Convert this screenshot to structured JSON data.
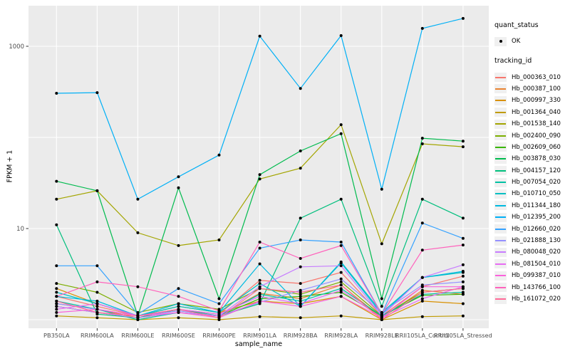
{
  "figure": {
    "background": "#FFFFFF",
    "panel_background": "#EBEBEB",
    "gridline_color": "#FFFFFF",
    "tick_text_color": "#4D4D4D",
    "point_color": "#000000"
  },
  "axes": {
    "x": {
      "title": "sample_name"
    },
    "y": {
      "title": "FPKM + 1",
      "tick_labels": [
        "1000",
        "10"
      ],
      "tick_values": [
        1000,
        10
      ],
      "gridline_values": [
        1,
        10,
        100,
        1000
      ],
      "scale": "log10"
    }
  },
  "legend": {
    "quant_status": {
      "title": "quant_status",
      "items": [
        {
          "label": "OK",
          "marker": "point",
          "color": "#000000"
        }
      ]
    },
    "tracking_id": {
      "title": "tracking_id"
    }
  },
  "chart_data": {
    "type": "line",
    "title": "",
    "xlabel": "sample_name",
    "ylabel": "FPKM + 1",
    "yscale": "log10",
    "ylim": [
      0.85,
      2800
    ],
    "grid": true,
    "legend_position": "right",
    "categories": [
      "PB350LA",
      "RRIM600LA",
      "RRIM600LE",
      "RRIM600SE",
      "RRIM600PE",
      "RRIM901LA",
      "RRIM928BA",
      "RRIM928LA",
      "RRIM928LE",
      "RRII105LA_Control",
      "RRII105LA_Stressed"
    ],
    "series": [
      {
        "name": "Hb_000363_010",
        "color": "#F8766D",
        "values": [
          1.8,
          1.4,
          1.1,
          1.3,
          1.15,
          2.7,
          2.5,
          3.3,
          1.1,
          2.3,
          3.0
        ]
      },
      {
        "name": "Hb_000387_100",
        "color": "#EA8331",
        "values": [
          1.5,
          1.3,
          1.05,
          1.2,
          1.1,
          1.95,
          1.7,
          2.4,
          1.05,
          2.1,
          1.9
        ]
      },
      {
        "name": "Hb_000997_330",
        "color": "#D89000",
        "values": [
          2.2,
          1.5,
          1.1,
          1.4,
          1.2,
          1.6,
          1.5,
          1.8,
          1.0,
          1.6,
          1.5
        ]
      },
      {
        "name": "Hb_001364_040",
        "color": "#C09B00",
        "values": [
          1.1,
          1.05,
          1.0,
          1.05,
          1.0,
          1.08,
          1.05,
          1.1,
          1.0,
          1.08,
          1.1
        ]
      },
      {
        "name": "Hb_001538_140",
        "color": "#A3A500",
        "values": [
          21,
          26,
          9,
          6.5,
          7.5,
          35,
          46,
          138,
          6.8,
          85,
          79
        ]
      },
      {
        "name": "Hb_002400_090",
        "color": "#7CAE00",
        "values": [
          2.5,
          2.0,
          1.2,
          1.5,
          1.3,
          2.2,
          1.9,
          2.6,
          1.1,
          2.0,
          2.2
        ]
      },
      {
        "name": "Hb_002609_060",
        "color": "#39B600",
        "values": [
          1.4,
          1.2,
          1.05,
          1.3,
          1.1,
          1.7,
          1.8,
          2.0,
          1.1,
          1.85,
          1.9
        ]
      },
      {
        "name": "Hb_003878_030",
        "color": "#00BB4E",
        "values": [
          33,
          26,
          1.1,
          28,
          1.7,
          39,
          71,
          110,
          1.7,
          98,
          91
        ]
      },
      {
        "name": "Hb_004157_120",
        "color": "#00BF7D",
        "values": [
          11,
          1.15,
          1.05,
          1.3,
          1.1,
          1.5,
          13,
          21,
          1.4,
          21,
          13
        ]
      },
      {
        "name": "Hb_007054_020",
        "color": "#00C1A3",
        "values": [
          1.6,
          1.3,
          1.0,
          1.2,
          1.1,
          1.9,
          1.6,
          2.2,
          1.1,
          1.9,
          2.0
        ]
      },
      {
        "name": "Hb_010710_050",
        "color": "#00BFC4",
        "values": [
          2.0,
          1.5,
          1.1,
          1.4,
          1.2,
          2.5,
          1.4,
          4.3,
          1.2,
          2.9,
          3.3
        ]
      },
      {
        "name": "Hb_011344_180",
        "color": "#00BAE0",
        "values": [
          1.8,
          1.6,
          1.1,
          1.5,
          1.2,
          4.1,
          1.4,
          4.2,
          1.15,
          2.9,
          3.4
        ]
      },
      {
        "name": "Hb_012395_200",
        "color": "#00B0F6",
        "values": [
          305,
          310,
          21,
          37,
          64,
          1290,
          345,
          1310,
          27,
          1570,
          2020
        ]
      },
      {
        "name": "Hb_012660_020",
        "color": "#35A2FF",
        "values": [
          3.9,
          3.9,
          1.15,
          2.2,
          1.5,
          6.1,
          7.5,
          7.1,
          1.15,
          11.5,
          7.8
        ]
      },
      {
        "name": "Hb_021888_130",
        "color": "#9590FF",
        "values": [
          1.5,
          1.3,
          1.1,
          1.25,
          1.1,
          1.55,
          2.1,
          2.8,
          1.2,
          2.4,
          2.6
        ]
      },
      {
        "name": "Hb_080048_020",
        "color": "#C77CFF",
        "values": [
          1.4,
          1.2,
          1.05,
          1.2,
          1.1,
          2.3,
          3.8,
          3.9,
          1.1,
          2.9,
          4.0
        ]
      },
      {
        "name": "Hb_081504_010",
        "color": "#E76BF3",
        "values": [
          1.3,
          1.5,
          1.1,
          1.3,
          1.15,
          1.8,
          1.5,
          2.1,
          1.05,
          1.7,
          2.3
        ]
      },
      {
        "name": "Hb_099387_010",
        "color": "#FA62DB",
        "values": [
          1.2,
          1.3,
          1.1,
          1.2,
          1.05,
          1.6,
          1.4,
          1.8,
          1.05,
          2.3,
          2.3
        ]
      },
      {
        "name": "Hb_143766_100",
        "color": "#FF62BC",
        "values": [
          1.8,
          2.6,
          2.3,
          1.8,
          1.25,
          7.1,
          4.7,
          6.5,
          1.15,
          5.8,
          6.6
        ]
      },
      {
        "name": "Hb_161072_020",
        "color": "#FF6A98",
        "values": [
          1.6,
          1.2,
          1.1,
          1.3,
          1.05,
          2.2,
          2.0,
          2.4,
          1.0,
          2.0,
          2.2
        ]
      }
    ]
  }
}
